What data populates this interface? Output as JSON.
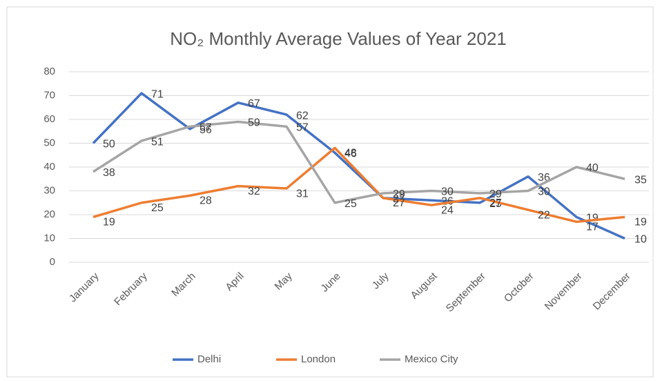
{
  "chart_data": {
    "type": "line",
    "title": "NO₂ Monthly Average Values of Year 2021",
    "categories": [
      "January",
      "February",
      "March",
      "April",
      "May",
      "June",
      "July",
      "August",
      "September",
      "October",
      "November",
      "December"
    ],
    "series": [
      {
        "name": "Delhi",
        "color": "#4472c4",
        "values": [
          50,
          71,
          56,
          67,
          62,
          46,
          27,
          26,
          25,
          36,
          19,
          10
        ]
      },
      {
        "name": "London",
        "color": "#ed7d31",
        "values": [
          19,
          25,
          28,
          32,
          31,
          48,
          27,
          24,
          27,
          22,
          17,
          19
        ]
      },
      {
        "name": "Mexico City",
        "color": "#a5a5a5",
        "values": [
          38,
          51,
          57,
          59,
          57,
          25,
          29,
          30,
          29,
          30,
          40,
          35
        ]
      }
    ],
    "ylim": [
      0,
      80
    ],
    "yticks": [
      0,
      10,
      20,
      30,
      40,
      50,
      60,
      70,
      80
    ],
    "grid": true,
    "legend": "bottom"
  }
}
